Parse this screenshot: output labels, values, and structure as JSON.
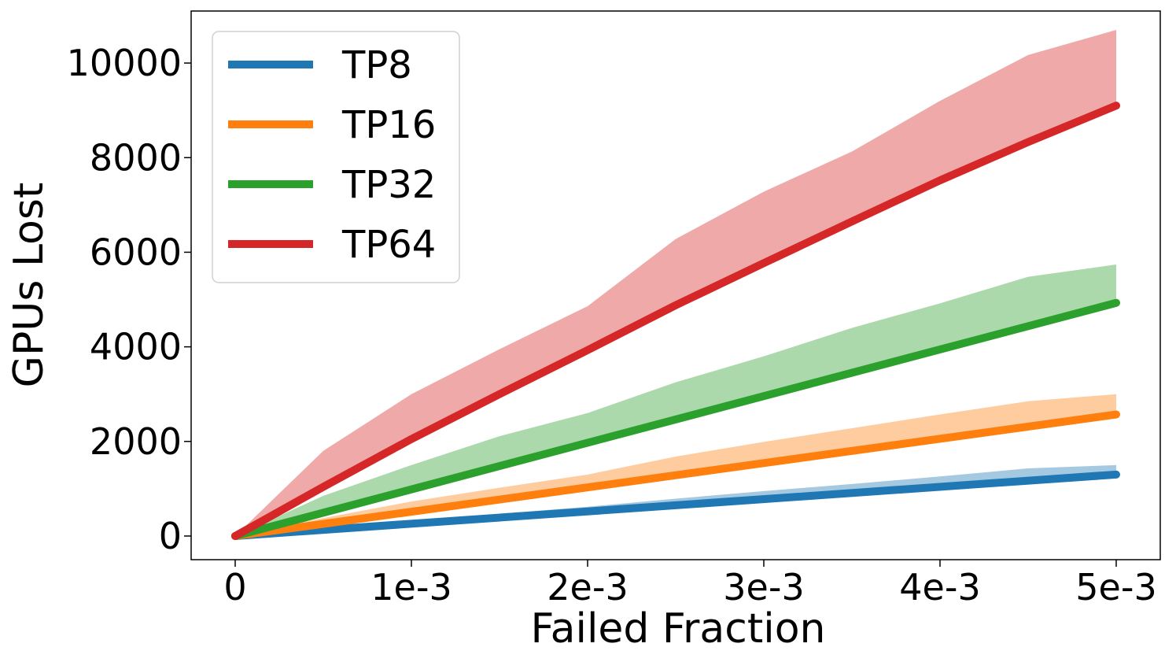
{
  "chart_data": {
    "type": "line",
    "xlabel": "Failed Fraction",
    "ylabel": "GPUs Lost",
    "xlim": [
      -0.00025,
      0.00525
    ],
    "ylim": [
      -500,
      11100
    ],
    "x_ticks": [
      {
        "value": 0,
        "label": "0"
      },
      {
        "value": 0.001,
        "label": "1e-3"
      },
      {
        "value": 0.002,
        "label": "2e-3"
      },
      {
        "value": 0.003,
        "label": "3e-3"
      },
      {
        "value": 0.004,
        "label": "4e-3"
      },
      {
        "value": 0.005,
        "label": "5e-3"
      }
    ],
    "y_ticks": [
      {
        "value": 0,
        "label": "0"
      },
      {
        "value": 2000,
        "label": "2000"
      },
      {
        "value": 4000,
        "label": "4000"
      },
      {
        "value": 6000,
        "label": "6000"
      },
      {
        "value": 8000,
        "label": "8000"
      },
      {
        "value": 10000,
        "label": "10000"
      }
    ],
    "legend_position": "top-left",
    "series": [
      {
        "name": "TP8",
        "color": "#1f77b4",
        "x": [
          0,
          0.005
        ],
        "values": [
          0,
          1300
        ],
        "band_x": [
          0,
          0.0005,
          0.001,
          0.0015,
          0.002,
          0.0025,
          0.003,
          0.0035,
          0.004,
          0.0045,
          0.005
        ],
        "band_upper": [
          0,
          170,
          310,
          470,
          620,
          790,
          950,
          1100,
          1260,
          1430,
          1500
        ],
        "band_lower": [
          0,
          130,
          260,
          390,
          520,
          650,
          780,
          910,
          1040,
          1170,
          1300
        ]
      },
      {
        "name": "TP16",
        "color": "#ff7f0e",
        "x": [
          0,
          0.005
        ],
        "values": [
          0,
          2570
        ],
        "band_x": [
          0,
          0.0005,
          0.001,
          0.0015,
          0.002,
          0.0025,
          0.003,
          0.0035,
          0.004,
          0.0045,
          0.005
        ],
        "band_upper": [
          0,
          380,
          730,
          1020,
          1300,
          1680,
          1990,
          2280,
          2570,
          2850,
          3000
        ],
        "band_lower": [
          0,
          257,
          514,
          771,
          1028,
          1285,
          1542,
          1799,
          2056,
          2313,
          2570
        ]
      },
      {
        "name": "TP32",
        "color": "#2ca02c",
        "x": [
          0,
          0.005
        ],
        "values": [
          0,
          4930
        ],
        "band_x": [
          0,
          0.0005,
          0.001,
          0.0015,
          0.002,
          0.0025,
          0.003,
          0.0035,
          0.004,
          0.0045,
          0.005
        ],
        "band_upper": [
          0,
          850,
          1500,
          2110,
          2600,
          3250,
          3800,
          4400,
          4920,
          5480,
          5740
        ],
        "band_lower": [
          0,
          493,
          986,
          1479,
          1972,
          2465,
          2958,
          3451,
          3944,
          4437,
          4930
        ]
      },
      {
        "name": "TP64",
        "color": "#d62728",
        "x": [
          0,
          0.0005,
          0.001,
          0.0015,
          0.002,
          0.0025,
          0.003,
          0.0035,
          0.004,
          0.0045,
          0.005
        ],
        "values": [
          0,
          1040,
          2050,
          3000,
          3930,
          4880,
          5770,
          6650,
          7520,
          8330,
          9100
        ],
        "band_x": [
          0,
          0.0005,
          0.001,
          0.0015,
          0.002,
          0.0025,
          0.003,
          0.0035,
          0.004,
          0.0045,
          0.005
        ],
        "band_upper": [
          0,
          1800,
          3000,
          3950,
          4860,
          6280,
          7280,
          8130,
          9200,
          10170,
          10700
        ],
        "band_lower": [
          0,
          1040,
          2050,
          3000,
          3930,
          4880,
          5770,
          6650,
          7520,
          8330,
          9100
        ]
      }
    ]
  }
}
